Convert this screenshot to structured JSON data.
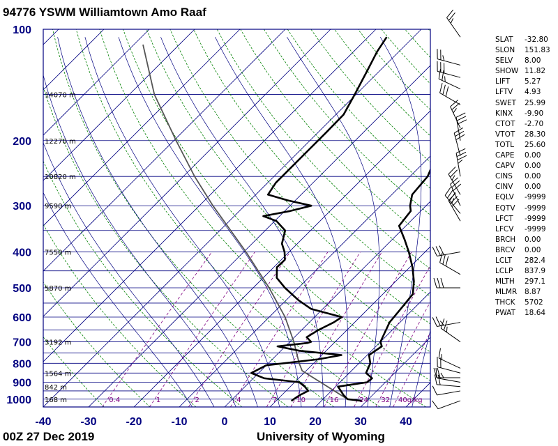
{
  "title": "94776 YSWM Williamtown Amo Raaf",
  "footer": {
    "time": "00Z 27 Dec 2019",
    "credit": "University of Wyoming"
  },
  "colors": {
    "frame": "#000080",
    "isobar": "#000080",
    "isotherm": "#000080",
    "dry_adiabat": "#008000",
    "moist_adiabat": "#000080",
    "mixing_ratio": "#800080",
    "parcel": "#555555",
    "trace": "#000000",
    "axis_labels": "#000080"
  },
  "parameters": [
    {
      "name": "SLAT",
      "value": "-32.80"
    },
    {
      "name": "SLON",
      "value": "151.83"
    },
    {
      "name": "SELV",
      "value": "8.00"
    },
    {
      "name": "SHOW",
      "value": "11.82"
    },
    {
      "name": "LIFT",
      "value": "5.27"
    },
    {
      "name": "LFTV",
      "value": "4.93"
    },
    {
      "name": "SWET",
      "value": "25.99"
    },
    {
      "name": "KINX",
      "value": "-9.90"
    },
    {
      "name": "CTOT",
      "value": "-2.70"
    },
    {
      "name": "VTOT",
      "value": "28.30"
    },
    {
      "name": "TOTL",
      "value": "25.60"
    },
    {
      "name": "CAPE",
      "value": "0.00"
    },
    {
      "name": "CAPV",
      "value": "0.00"
    },
    {
      "name": "CINS",
      "value": "0.00"
    },
    {
      "name": "CINV",
      "value": "0.00"
    },
    {
      "name": "EQLV",
      "value": "-9999"
    },
    {
      "name": "EQTV",
      "value": "-9999"
    },
    {
      "name": "LFCT",
      "value": "-9999"
    },
    {
      "name": "LFCV",
      "value": "-9999"
    },
    {
      "name": "BRCH",
      "value": "0.00"
    },
    {
      "name": "BRCV",
      "value": "0.00"
    },
    {
      "name": "LCLT",
      "value": "282.4"
    },
    {
      "name": "LCLP",
      "value": "837.9"
    },
    {
      "name": "MLTH",
      "value": "297.1"
    },
    {
      "name": "MLMR",
      "value": "8.87"
    },
    {
      "name": "THCK",
      "value": "5702"
    },
    {
      "name": "PWAT",
      "value": "18.64"
    }
  ],
  "chart_data": {
    "type": "skew-t",
    "x_ticks": [
      -40,
      -30,
      -20,
      -10,
      0,
      10,
      20,
      30,
      40
    ],
    "y_ticks": [
      {
        "p": 100,
        "label": "100"
      },
      {
        "p": 200,
        "label": "200"
      },
      {
        "p": 300,
        "label": "300"
      },
      {
        "p": 400,
        "label": "400"
      },
      {
        "p": 500,
        "label": "500"
      },
      {
        "p": 600,
        "label": "600"
      },
      {
        "p": 700,
        "label": "700"
      },
      {
        "p": 800,
        "label": "800"
      },
      {
        "p": 900,
        "label": "900"
      },
      {
        "p": 1000,
        "label": "1000"
      }
    ],
    "xlim": [
      -40,
      45
    ],
    "ylim": [
      1050,
      100
    ],
    "height_labels": [
      {
        "p": 150,
        "label": "14070 m"
      },
      {
        "p": 200,
        "label": "12270 m"
      },
      {
        "p": 250,
        "label": "10820 m"
      },
      {
        "p": 300,
        "label": "9590 m"
      },
      {
        "p": 400,
        "label": "7550 m"
      },
      {
        "p": 500,
        "label": "5870 m"
      },
      {
        "p": 700,
        "label": "3192 m"
      },
      {
        "p": 850,
        "label": "1564 m"
      },
      {
        "p": 925,
        "label": "842 m"
      },
      {
        "p": 1000,
        "label": "168 m"
      }
    ],
    "mixing_ratio_labels": [
      "0.4",
      "1",
      "2",
      "4",
      "7",
      "10",
      "16",
      "24",
      "32",
      "40g/kg"
    ],
    "mixing_ratio_values": [
      0.4,
      1,
      2,
      4,
      7,
      10,
      16,
      24,
      32,
      40
    ],
    "temperature": [
      [
        1011,
        29.0
      ],
      [
        1000,
        25.4
      ],
      [
        975,
        23.6
      ],
      [
        950,
        22.1
      ],
      [
        925,
        20.5
      ],
      [
        900,
        26.0
      ],
      [
        878,
        26.2
      ],
      [
        850,
        23.7
      ],
      [
        800,
        22.5
      ],
      [
        760,
        20.4
      ],
      [
        720,
        21.3
      ],
      [
        700,
        20.0
      ],
      [
        650,
        18.6
      ],
      [
        620,
        17.7
      ],
      [
        570,
        17.2
      ],
      [
        520,
        16.6
      ],
      [
        480,
        14.0
      ],
      [
        440,
        10.6
      ],
      [
        400,
        6.4
      ],
      [
        370,
        2.7
      ],
      [
        340,
        -1.5
      ],
      [
        310,
        -2.2
      ],
      [
        300,
        -3.5
      ],
      [
        280,
        -5.5
      ],
      [
        250,
        -6.1
      ],
      [
        220,
        -8.7
      ],
      [
        190,
        -12.7
      ],
      [
        170,
        -14.2
      ],
      [
        160,
        -15.3
      ],
      [
        150,
        -16.2
      ],
      [
        135,
        -19.9
      ],
      [
        120,
        -23.7
      ],
      [
        110,
        -24.1
      ],
      [
        105,
        -25.2
      ]
    ],
    "dewpoint": [
      [
        1011,
        13.4
      ],
      [
        1000,
        13.5
      ],
      [
        975,
        14.0
      ],
      [
        950,
        14.9
      ],
      [
        925,
        13.2
      ],
      [
        900,
        11.0
      ],
      [
        878,
        2.4
      ],
      [
        850,
        -1.6
      ],
      [
        810,
        0.0
      ],
      [
        780,
        10.2
      ],
      [
        760,
        14.3
      ],
      [
        740,
        4.1
      ],
      [
        720,
        -1.7
      ],
      [
        705,
        4.1
      ],
      [
        700,
        4.7
      ],
      [
        680,
        2.7
      ],
      [
        650,
        3.7
      ],
      [
        620,
        5.4
      ],
      [
        600,
        6.0
      ],
      [
        570,
        -2.6
      ],
      [
        540,
        -7.3
      ],
      [
        500,
        -13.0
      ],
      [
        470,
        -17.0
      ],
      [
        440,
        -19.3
      ],
      [
        420,
        -19.2
      ],
      [
        400,
        -21.0
      ],
      [
        380,
        -23.4
      ],
      [
        350,
        -25.6
      ],
      [
        330,
        -29.6
      ],
      [
        320,
        -33.6
      ],
      [
        310,
        -28.8
      ],
      [
        300,
        -25.3
      ],
      [
        290,
        -31.8
      ],
      [
        280,
        -37.3
      ],
      [
        260,
        -38.2
      ],
      [
        240,
        -38.2
      ],
      [
        210,
        -38.2
      ],
      [
        190,
        -38.2
      ],
      [
        170,
        -38.3
      ],
      [
        150,
        -40.3
      ],
      [
        130,
        -42.7
      ],
      [
        115,
        -44.8
      ],
      [
        105,
        -45.9
      ]
    ],
    "parcel": [
      [
        1000,
        25.4
      ],
      [
        837.9,
        9.1
      ],
      [
        800,
        6.8
      ],
      [
        700,
        0.9
      ],
      [
        600,
        -6.5
      ],
      [
        500,
        -16.5
      ],
      [
        400,
        -29.5
      ],
      [
        300,
        -47.0
      ],
      [
        250,
        -57.5
      ],
      [
        200,
        -69.5
      ],
      [
        150,
        -84.5
      ],
      [
        110,
        -98.0
      ]
    ],
    "winds": [
      {
        "p": 1010,
        "dir": 250,
        "spd": 10
      },
      {
        "p": 950,
        "dir": 260,
        "spd": 10
      },
      {
        "p": 925,
        "dir": 275,
        "spd": 20
      },
      {
        "p": 900,
        "dir": 280,
        "spd": 15
      },
      {
        "p": 875,
        "dir": 270,
        "spd": 25
      },
      {
        "p": 850,
        "dir": 285,
        "spd": 20
      },
      {
        "p": 825,
        "dir": 295,
        "spd": 15
      },
      {
        "p": 700,
        "dir": 305,
        "spd": 25
      },
      {
        "p": 620,
        "dir": 260,
        "spd": 25
      },
      {
        "p": 500,
        "dir": 270,
        "spd": 30
      },
      {
        "p": 460,
        "dir": 300,
        "spd": 30
      },
      {
        "p": 400,
        "dir": 260,
        "spd": 30
      },
      {
        "p": 330,
        "dir": 330,
        "spd": 30
      },
      {
        "p": 315,
        "dir": 320,
        "spd": 35
      },
      {
        "p": 300,
        "dir": 335,
        "spd": 30
      },
      {
        "p": 280,
        "dir": 330,
        "spd": 25
      },
      {
        "p": 250,
        "dir": 350,
        "spd": 35
      },
      {
        "p": 220,
        "dir": 345,
        "spd": 30
      },
      {
        "p": 200,
        "dir": 350,
        "spd": 30
      },
      {
        "p": 185,
        "dir": 335,
        "spd": 25
      },
      {
        "p": 160,
        "dir": 300,
        "spd": 30
      },
      {
        "p": 145,
        "dir": 295,
        "spd": 25
      },
      {
        "p": 135,
        "dir": 285,
        "spd": 30
      },
      {
        "p": 125,
        "dir": 285,
        "spd": 25
      },
      {
        "p": 105,
        "dir": 325,
        "spd": 25
      }
    ]
  }
}
